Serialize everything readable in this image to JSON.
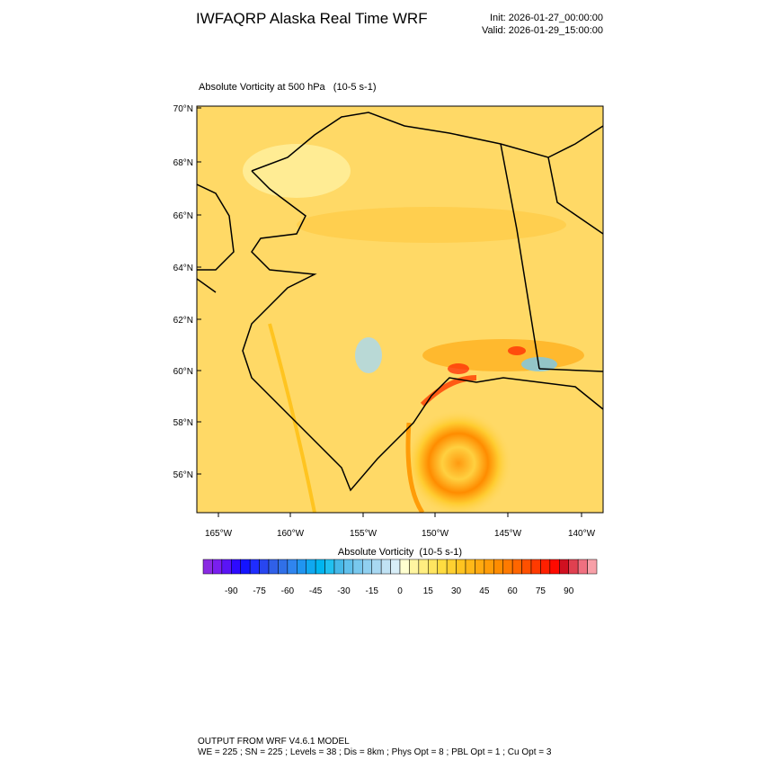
{
  "header": {
    "title": "IWFAQRP Alaska Real Time WRF",
    "init": "Init: 2026-01-27_00:00:00",
    "valid": "Valid: 2026-01-29_15:00:00"
  },
  "map": {
    "title": "Absolute Vorticity at 500 hPa   (10-5 s-1)",
    "lat_labels": [
      "70°N",
      "68°N",
      "66°N",
      "64°N",
      "62°N",
      "60°N",
      "58°N",
      "56°N"
    ],
    "lon_labels": [
      "165°W",
      "160°W",
      "155°W",
      "150°W",
      "145°W",
      "140°W"
    ]
  },
  "colorbar": {
    "title": "Absolute Vorticity  (10-5 s-1)",
    "lim": [
      -105,
      105
    ],
    "ticks": [
      -90,
      -75,
      -60,
      -45,
      -30,
      -15,
      0,
      15,
      30,
      45,
      60,
      75,
      90
    ],
    "colors": [
      "#8a2be2",
      "#7a1fef",
      "#5a14f5",
      "#2d0aff",
      "#1414ff",
      "#1f2dff",
      "#2846f0",
      "#3060e8",
      "#3070e8",
      "#2f85ef",
      "#2095f0",
      "#10a8f0",
      "#00b5f0",
      "#20c0f0",
      "#45b8e8",
      "#60c0ec",
      "#78c8ee",
      "#90d0f0",
      "#a8d8f2",
      "#c0e2f4",
      "#d8eef8",
      "#ffffd0",
      "#fff5a0",
      "#ffee80",
      "#ffe560",
      "#ffdc40",
      "#ffd030",
      "#ffc420",
      "#ffb818",
      "#ffaa10",
      "#ff9c08",
      "#ff8c00",
      "#ff7a00",
      "#ff6600",
      "#ff5000",
      "#ff3a00",
      "#ff2000",
      "#ff0a00",
      "#d01020",
      "#e04050",
      "#f07080",
      "#f8a0a8"
    ]
  },
  "footer": {
    "line1": "OUTPUT FROM WRF V4.6.1 MODEL",
    "line2": "WE = 225 ; SN = 225 ; Levels = 38 ; Dis = 8km ; Phys Opt = 8 ; PBL Opt = 1 ; Cu Opt = 3"
  }
}
